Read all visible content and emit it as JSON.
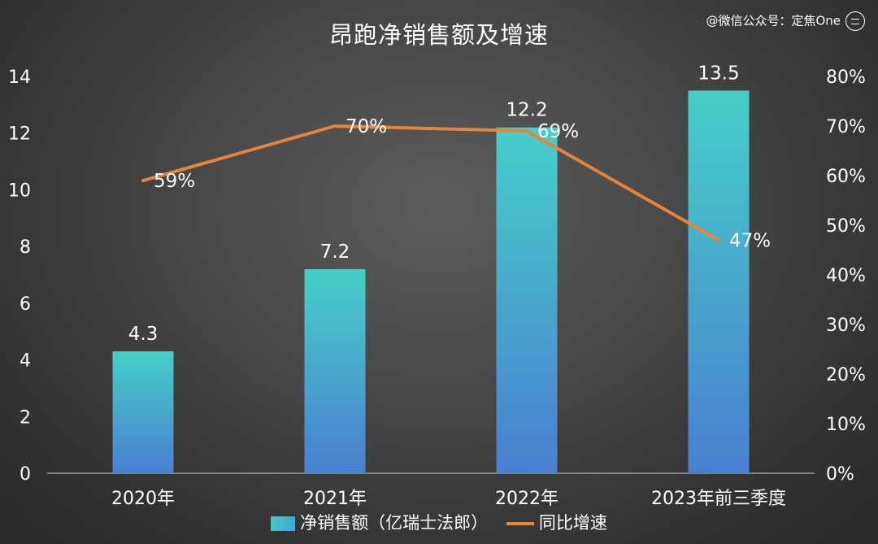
{
  "chart_data": {
    "type": "bar",
    "title": "昂跑净销售额及增速",
    "categories": [
      "2020年",
      "2021年",
      "2022年",
      "2023年前三季度"
    ],
    "series": [
      {
        "name": "净销售额（亿瑞士法郎）",
        "type": "bar",
        "axis": "left",
        "values": [
          4.3,
          7.2,
          12.2,
          13.5
        ],
        "labels": [
          "4.3",
          "7.2",
          "12.2",
          "13.5"
        ]
      },
      {
        "name": "同比增速",
        "type": "line",
        "axis": "right",
        "values": [
          59,
          70,
          69,
          47
        ],
        "labels": [
          "59%",
          "70%",
          "69%",
          "47%"
        ]
      }
    ],
    "y_left": {
      "range": [
        0,
        14
      ],
      "ticks": [
        "0",
        "2",
        "4",
        "6",
        "8",
        "10",
        "12",
        "14"
      ]
    },
    "y_right": {
      "range": [
        0,
        80
      ],
      "ticks": [
        "0%",
        "10%",
        "20%",
        "30%",
        "40%",
        "50%",
        "60%",
        "70%",
        "80%"
      ]
    },
    "grid": false,
    "legend_position": "bottom",
    "colors": {
      "bar_top": "#46cfc8",
      "bar_bottom": "#4a7fd0",
      "line": "#e8843a"
    }
  },
  "watermark": "@微信公众号：定焦One"
}
